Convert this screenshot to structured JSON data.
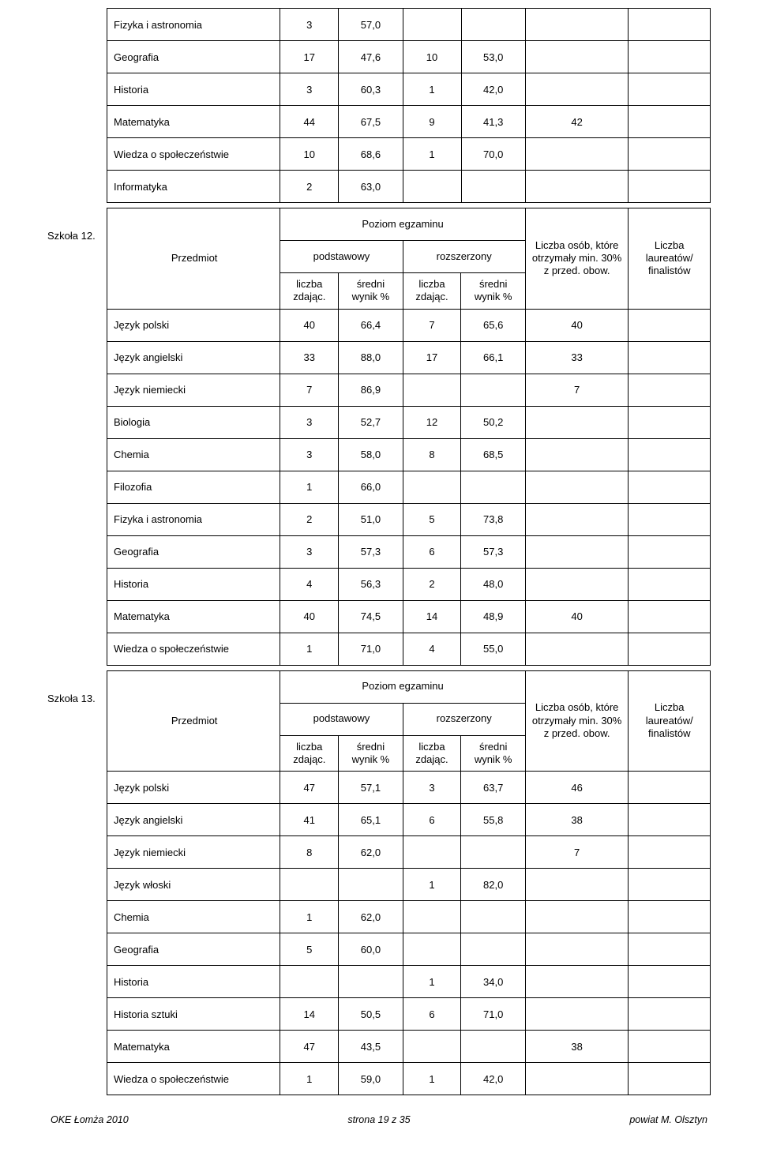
{
  "footer": {
    "left": "OKE Łomża 2010",
    "center": "strona 19 z 35",
    "right": "powiat M. Olsztyn"
  },
  "headers": {
    "przedmiot": "Przedmiot",
    "poziom": "Poziom egzaminu",
    "podstawowy": "podstawowy",
    "rozszerzony": "rozszerzony",
    "liczba_zdajac": "liczba zdając.",
    "sredni_wynik": "średni wynik %",
    "liczba_osob": "Liczba osób, które otrzymały min. 30% z przed. obow.",
    "liczba_laur": "Liczba laureatów/ finalistów"
  },
  "top_rows": [
    {
      "subj": "Fizyka i astronomia",
      "p_n": "3",
      "p_w": "57,0",
      "r_n": "",
      "r_w": "",
      "osob": "",
      "laur": ""
    },
    {
      "subj": "Geografia",
      "p_n": "17",
      "p_w": "47,6",
      "r_n": "10",
      "r_w": "53,0",
      "osob": "",
      "laur": ""
    },
    {
      "subj": "Historia",
      "p_n": "3",
      "p_w": "60,3",
      "r_n": "1",
      "r_w": "42,0",
      "osob": "",
      "laur": ""
    },
    {
      "subj": "Matematyka",
      "p_n": "44",
      "p_w": "67,5",
      "r_n": "9",
      "r_w": "41,3",
      "osob": "42",
      "laur": ""
    },
    {
      "subj": "Wiedza o społeczeństwie",
      "p_n": "10",
      "p_w": "68,6",
      "r_n": "1",
      "r_w": "70,0",
      "osob": "",
      "laur": ""
    },
    {
      "subj": "Informatyka",
      "p_n": "2",
      "p_w": "63,0",
      "r_n": "",
      "r_w": "",
      "osob": "",
      "laur": ""
    }
  ],
  "schools": [
    {
      "label": "Szkoła 12.",
      "rows": [
        {
          "subj": "Język polski",
          "p_n": "40",
          "p_w": "66,4",
          "r_n": "7",
          "r_w": "65,6",
          "osob": "40",
          "laur": ""
        },
        {
          "subj": "Język angielski",
          "p_n": "33",
          "p_w": "88,0",
          "r_n": "17",
          "r_w": "66,1",
          "osob": "33",
          "laur": ""
        },
        {
          "subj": "Język niemiecki",
          "p_n": "7",
          "p_w": "86,9",
          "r_n": "",
          "r_w": "",
          "osob": "7",
          "laur": ""
        },
        {
          "subj": "Biologia",
          "p_n": "3",
          "p_w": "52,7",
          "r_n": "12",
          "r_w": "50,2",
          "osob": "",
          "laur": ""
        },
        {
          "subj": "Chemia",
          "p_n": "3",
          "p_w": "58,0",
          "r_n": "8",
          "r_w": "68,5",
          "osob": "",
          "laur": ""
        },
        {
          "subj": "Filozofia",
          "p_n": "1",
          "p_w": "66,0",
          "r_n": "",
          "r_w": "",
          "osob": "",
          "laur": ""
        },
        {
          "subj": "Fizyka i astronomia",
          "p_n": "2",
          "p_w": "51,0",
          "r_n": "5",
          "r_w": "73,8",
          "osob": "",
          "laur": ""
        },
        {
          "subj": "Geografia",
          "p_n": "3",
          "p_w": "57,3",
          "r_n": "6",
          "r_w": "57,3",
          "osob": "",
          "laur": ""
        },
        {
          "subj": "Historia",
          "p_n": "4",
          "p_w": "56,3",
          "r_n": "2",
          "r_w": "48,0",
          "osob": "",
          "laur": ""
        },
        {
          "subj": "Matematyka",
          "p_n": "40",
          "p_w": "74,5",
          "r_n": "14",
          "r_w": "48,9",
          "osob": "40",
          "laur": ""
        },
        {
          "subj": "Wiedza o społeczeństwie",
          "p_n": "1",
          "p_w": "71,0",
          "r_n": "4",
          "r_w": "55,0",
          "osob": "",
          "laur": ""
        }
      ]
    },
    {
      "label": "Szkoła 13.",
      "rows": [
        {
          "subj": "Język polski",
          "p_n": "47",
          "p_w": "57,1",
          "r_n": "3",
          "r_w": "63,7",
          "osob": "46",
          "laur": ""
        },
        {
          "subj": "Język angielski",
          "p_n": "41",
          "p_w": "65,1",
          "r_n": "6",
          "r_w": "55,8",
          "osob": "38",
          "laur": ""
        },
        {
          "subj": "Język niemiecki",
          "p_n": "8",
          "p_w": "62,0",
          "r_n": "",
          "r_w": "",
          "osob": "7",
          "laur": ""
        },
        {
          "subj": "Język włoski",
          "p_n": "",
          "p_w": "",
          "r_n": "1",
          "r_w": "82,0",
          "osob": "",
          "laur": ""
        },
        {
          "subj": "Chemia",
          "p_n": "1",
          "p_w": "62,0",
          "r_n": "",
          "r_w": "",
          "osob": "",
          "laur": ""
        },
        {
          "subj": "Geografia",
          "p_n": "5",
          "p_w": "60,0",
          "r_n": "",
          "r_w": "",
          "osob": "",
          "laur": ""
        },
        {
          "subj": "Historia",
          "p_n": "",
          "p_w": "",
          "r_n": "1",
          "r_w": "34,0",
          "osob": "",
          "laur": ""
        },
        {
          "subj": "Historia sztuki",
          "p_n": "14",
          "p_w": "50,5",
          "r_n": "6",
          "r_w": "71,0",
          "osob": "",
          "laur": ""
        },
        {
          "subj": "Matematyka",
          "p_n": "47",
          "p_w": "43,5",
          "r_n": "",
          "r_w": "",
          "osob": "38",
          "laur": ""
        },
        {
          "subj": "Wiedza o społeczeństwie",
          "p_n": "1",
          "p_w": "59,0",
          "r_n": "1",
          "r_w": "42,0",
          "osob": "",
          "laur": ""
        }
      ]
    }
  ]
}
